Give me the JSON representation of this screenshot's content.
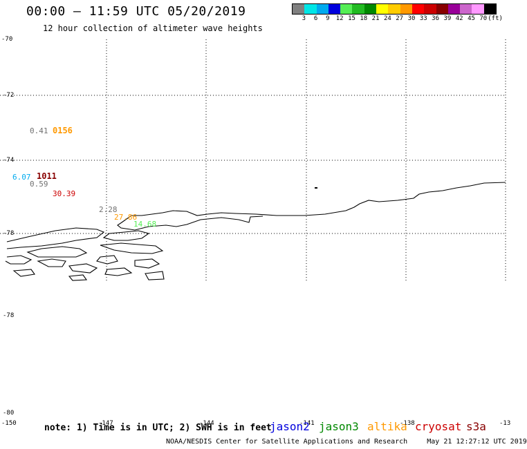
{
  "header": {
    "title": "00:00 – 11:59 UTC 05/20/2019",
    "subtitle": "12 hour collection of altimeter wave heights"
  },
  "colorbar": {
    "swatches": [
      "#808080",
      "#00e6e6",
      "#00aaee",
      "#0000dd",
      "#55ee55",
      "#22bb22",
      "#008800",
      "#ffff00",
      "#ffcc00",
      "#ff9900",
      "#ff0000",
      "#cc0000",
      "#880000",
      "#990099",
      "#cc66cc",
      "#ff99ff",
      "#000000"
    ],
    "labels": [
      "3",
      "6",
      "9",
      "12",
      "15",
      "18",
      "21",
      "24",
      "27",
      "30",
      "33",
      "36",
      "39",
      "42",
      "45",
      "70",
      "(ft)"
    ]
  },
  "axes": {
    "lat_labels": [
      "-70",
      "-72",
      "-74",
      "-78",
      "-78",
      "-80"
    ],
    "lon_labels": [
      "-150",
      "-147",
      "-144",
      "-141",
      "-138",
      "-13"
    ]
  },
  "observations": [
    {
      "text": "0.41",
      "color": "#707070"
    },
    {
      "text": "0156",
      "color": "#ff9900"
    },
    {
      "text": "6.07",
      "color": "#00aaee"
    },
    {
      "text": "1011",
      "color": "#880000"
    },
    {
      "text": "0.59",
      "color": "#707070"
    },
    {
      "text": "30.39",
      "color": "#cc0000"
    },
    {
      "text": "2.28",
      "color": "#707070"
    },
    {
      "text": "27.86",
      "color": "#ff9900"
    },
    {
      "text": "14.68",
      "color": "#55ee55"
    }
  ],
  "footer": {
    "note": "note: 1) Time is in UTC; 2) SWH is in feet",
    "satellites": [
      {
        "name": "jason2",
        "color": "#0000dd"
      },
      {
        "name": "jason3",
        "color": "#008800"
      },
      {
        "name": "altika",
        "color": "#ff9900"
      },
      {
        "name": "cryosat",
        "color": "#cc0000"
      },
      {
        "name": "s3a",
        "color": "#880000"
      }
    ],
    "credit": "NOAA/NESDIS Center for Satellite Applications and Research",
    "timestamp": "May 21 12:27:12 UTC 2019"
  }
}
